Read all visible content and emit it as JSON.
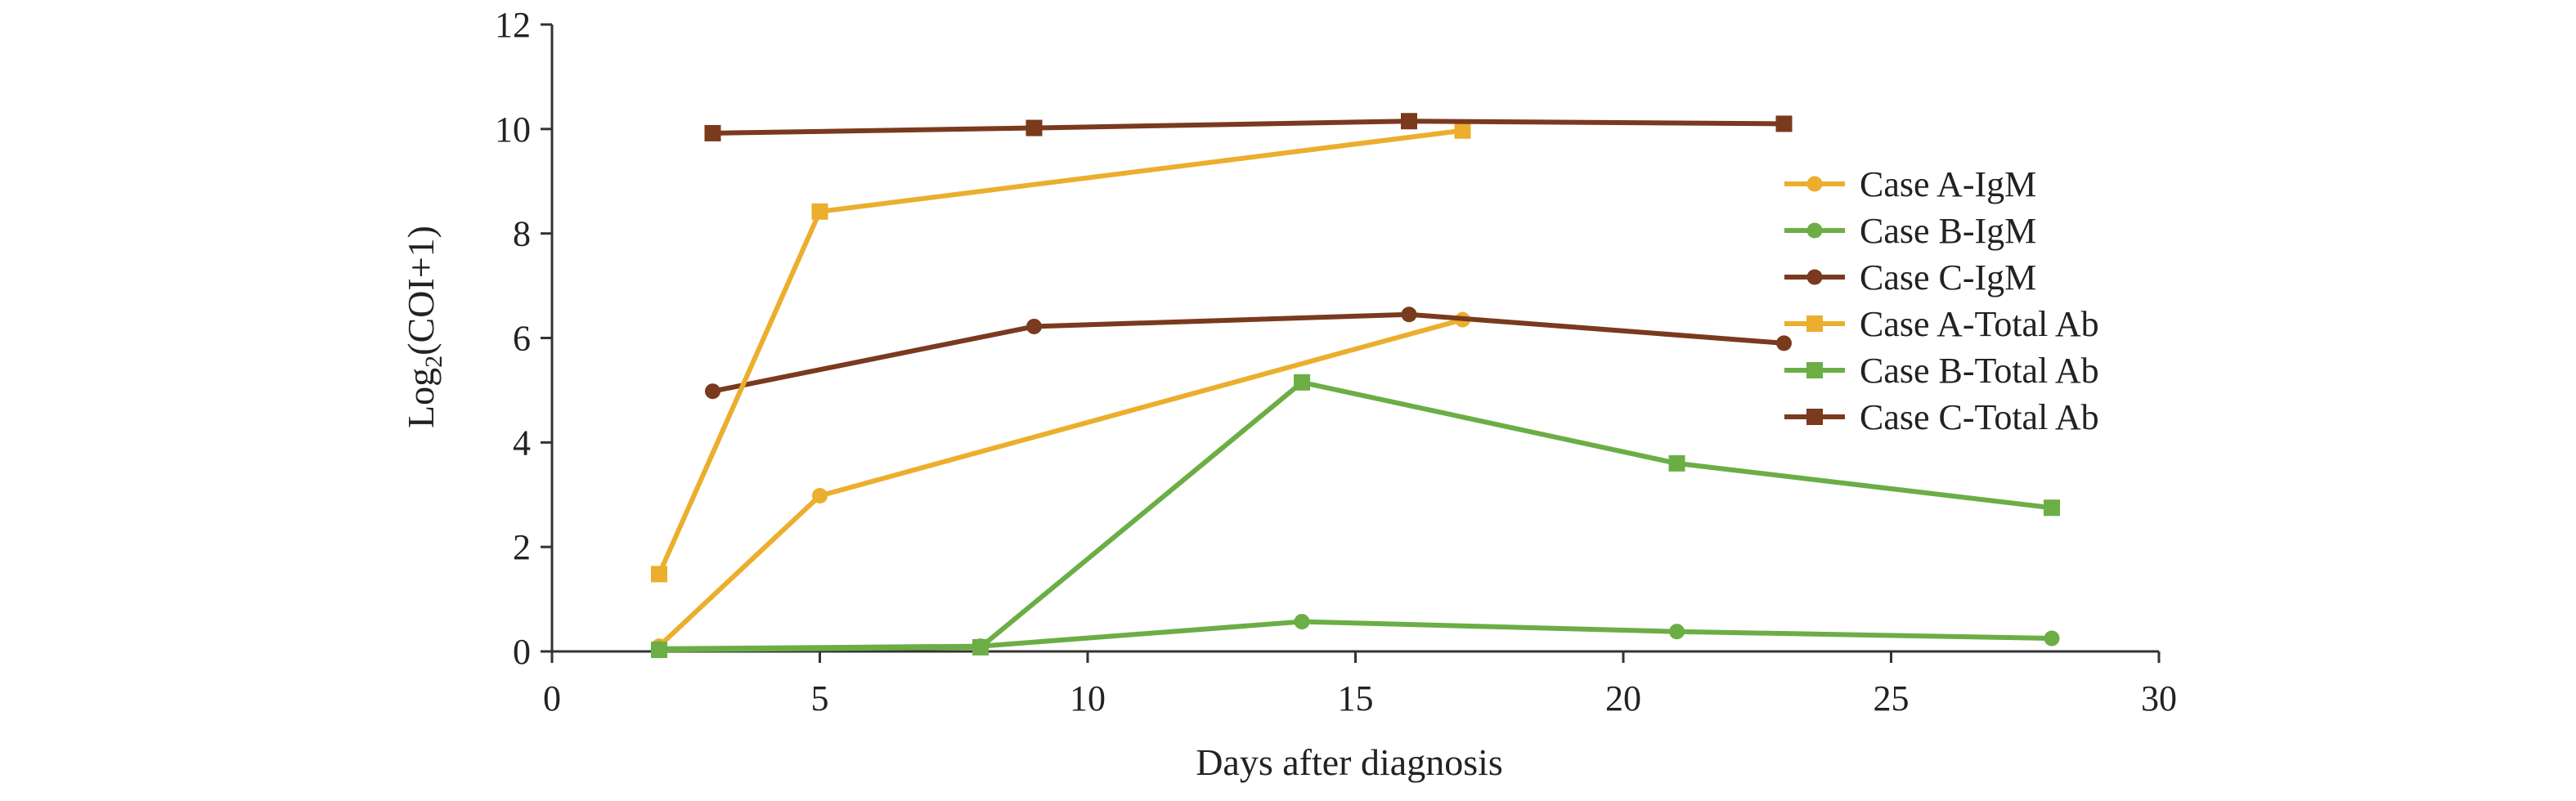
{
  "chart_data": {
    "type": "line",
    "title": "",
    "xlabel": "Days after diagnosis",
    "ylabel": "Log2(COI+1)",
    "ylabel_main": "Log",
    "ylabel_sub": "2",
    "ylabel_rest": "(COI+1)",
    "xlim": [
      0,
      30
    ],
    "ylim": [
      0,
      12
    ],
    "x_ticks": [
      0,
      5,
      10,
      15,
      20,
      25,
      30
    ],
    "y_ticks": [
      0,
      2,
      4,
      6,
      8,
      10,
      12
    ],
    "x_tick_labels": [
      "0",
      "5",
      "10",
      "15",
      "20",
      "25",
      "30"
    ],
    "y_tick_labels": [
      "0",
      "2",
      "4",
      "6",
      "8",
      "10",
      "12"
    ],
    "grid": false,
    "legend_position": "right",
    "series": [
      {
        "name": "Case A-IgM",
        "color": "#EBAE2D",
        "marker": "circle",
        "points": [
          [
            2,
            0.1
          ],
          [
            5,
            2.98
          ],
          [
            17,
            6.35
          ]
        ]
      },
      {
        "name": "Case B-IgM",
        "color": "#6BAE45",
        "marker": "circle",
        "points": [
          [
            2,
            0.05
          ],
          [
            8,
            0.1
          ],
          [
            14,
            0.57
          ],
          [
            21,
            0.38
          ],
          [
            28,
            0.25
          ]
        ]
      },
      {
        "name": "Case C-IgM",
        "color": "#7A3A1E",
        "marker": "circle",
        "points": [
          [
            3,
            4.98
          ],
          [
            9,
            6.22
          ],
          [
            16,
            6.45
          ],
          [
            23,
            5.9
          ]
        ]
      },
      {
        "name": "Case A-Total Ab",
        "color": "#EBAE2D",
        "marker": "square",
        "points": [
          [
            2,
            1.48
          ],
          [
            5,
            8.42
          ],
          [
            17,
            9.97
          ]
        ]
      },
      {
        "name": "Case B-Total Ab",
        "color": "#6BAE45",
        "marker": "square",
        "points": [
          [
            2,
            0.03
          ],
          [
            8,
            0.08
          ],
          [
            14,
            5.15
          ],
          [
            21,
            3.6
          ],
          [
            28,
            2.75
          ]
        ]
      },
      {
        "name": "Case C-Total Ab",
        "color": "#7A3A1E",
        "marker": "square",
        "points": [
          [
            3,
            9.92
          ],
          [
            9,
            10.02
          ],
          [
            16,
            10.15
          ],
          [
            23,
            10.1
          ]
        ]
      }
    ]
  }
}
